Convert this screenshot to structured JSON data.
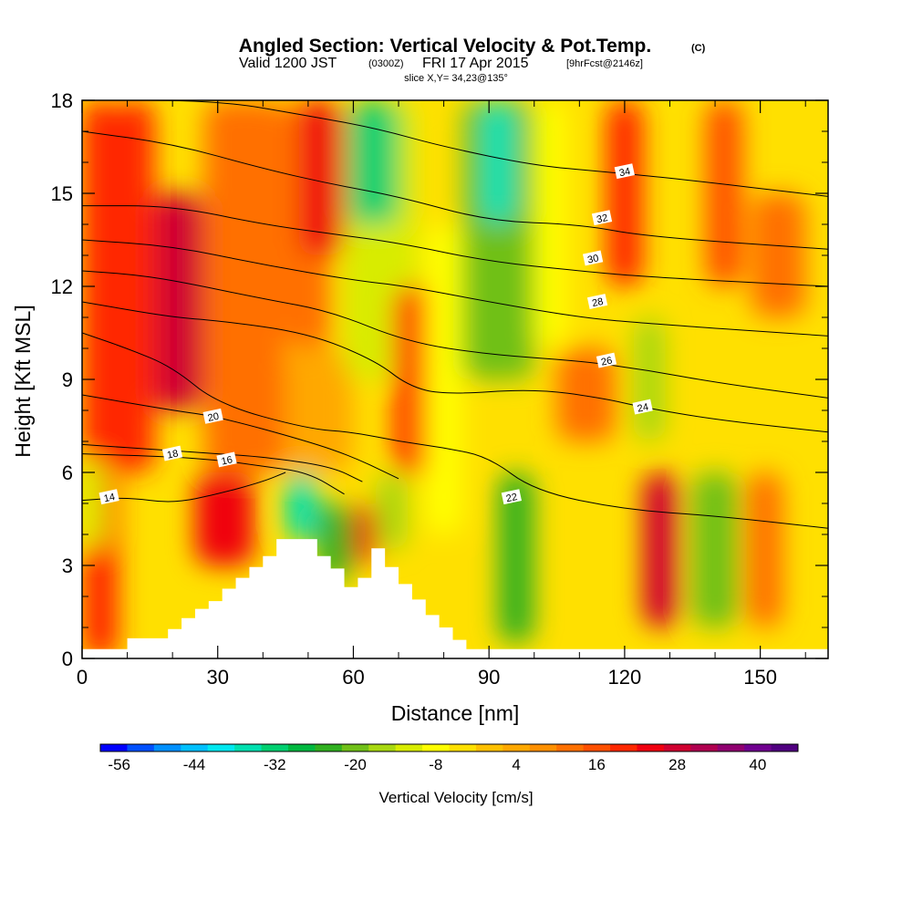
{
  "chart_data": {
    "type": "heatmap",
    "title": "Angled Section: Vertical Velocity & Pot.Temp.",
    "title_mark": "(C)",
    "subtitle": {
      "valid": "Valid 1200 JST",
      "utc": "(0300Z)",
      "date": "FRI 17 Apr 2015",
      "fcst": "[9hrFcst@2146z]"
    },
    "slice": "slice X,Y= 34,23@135°",
    "xlabel": "Distance [nm]",
    "ylabel": "Height [Kft MSL]",
    "xlim": [
      0,
      165
    ],
    "ylim": [
      0,
      18
    ],
    "x_ticks": [
      "0",
      "30",
      "60",
      "90",
      "120",
      "150"
    ],
    "x_tick_values": [
      0,
      30,
      60,
      90,
      120,
      150
    ],
    "y_ticks": [
      "0",
      "3",
      "6",
      "9",
      "12",
      "15",
      "18"
    ],
    "y_tick_values": [
      0,
      3,
      6,
      9,
      12,
      15,
      18
    ],
    "colorbar": {
      "title": "Vertical Velocity [cm/s]",
      "min": -56,
      "max": 52,
      "step": 4,
      "tick_labels": [
        "-56",
        "-44",
        "-32",
        "-20",
        "-8",
        "4",
        "16",
        "28",
        "40"
      ],
      "tick_values": [
        -56,
        -44,
        -32,
        -20,
        -8,
        4,
        16,
        28,
        40
      ],
      "colors": [
        "#0000ff",
        "#0050ff",
        "#0090ff",
        "#00c0ff",
        "#00e8f0",
        "#00e0b0",
        "#00d070",
        "#00b840",
        "#30b020",
        "#70c018",
        "#a8d810",
        "#d8ec00",
        "#ffff00",
        "#ffe000",
        "#ffc000",
        "#ffa800",
        "#ff9000",
        "#ff7000",
        "#ff5000",
        "#ff2800",
        "#f00010",
        "#d00030",
        "#b00050",
        "#900070",
        "#700090",
        "#500080"
      ]
    },
    "terrain": {
      "x": [
        0,
        10,
        10,
        19,
        19,
        22,
        22,
        25,
        25,
        28,
        28,
        31,
        31,
        34,
        34,
        37,
        37,
        40,
        40,
        43,
        43,
        52,
        52,
        55,
        55,
        58,
        58,
        61,
        61,
        64,
        64,
        67,
        67,
        70,
        70,
        73,
        73,
        76,
        76,
        79,
        79,
        82,
        82,
        85,
        85,
        88,
        88,
        165
      ],
      "y": [
        0.3,
        0.3,
        0.65,
        0.65,
        0.95,
        0.95,
        1.3,
        1.3,
        1.6,
        1.6,
        1.85,
        1.85,
        2.25,
        2.25,
        2.6,
        2.6,
        2.95,
        2.95,
        3.3,
        3.3,
        3.85,
        3.85,
        3.3,
        3.3,
        2.9,
        2.9,
        2.3,
        2.3,
        2.6,
        2.6,
        3.55,
        3.55,
        2.95,
        2.95,
        2.4,
        2.4,
        1.9,
        1.9,
        1.4,
        1.4,
        1.0,
        1.0,
        0.6,
        0.6,
        0.3,
        0.3,
        0.3,
        0.3
      ]
    },
    "velocity_cells": [
      {
        "x": [
          0,
          8
        ],
        "y": [
          0,
          18
        ],
        "v": 20
      },
      {
        "x": [
          8,
          16
        ],
        "y": [
          6,
          18
        ],
        "v": 22
      },
      {
        "x": [
          16,
          27
        ],
        "y": [
          8,
          15
        ],
        "v": 30
      },
      {
        "x": [
          27,
          45
        ],
        "y": [
          6,
          18
        ],
        "v": 14
      },
      {
        "x": [
          45,
          55
        ],
        "y": [
          10,
          18
        ],
        "v": 14
      },
      {
        "x": [
          45,
          60
        ],
        "y": [
          6,
          10
        ],
        "v": 6
      },
      {
        "x": [
          48,
          58
        ],
        "y": [
          13,
          18
        ],
        "v": 24
      },
      {
        "x": [
          58,
          74
        ],
        "y": [
          9,
          18
        ],
        "v": -10
      },
      {
        "x": [
          59,
          70
        ],
        "y": [
          14,
          18
        ],
        "v": -32
      },
      {
        "x": [
          69,
          78
        ],
        "y": [
          6,
          12
        ],
        "v": 20
      },
      {
        "x": [
          76,
          84
        ],
        "y": [
          4,
          14
        ],
        "v": -6
      },
      {
        "x": [
          84,
          100
        ],
        "y": [
          9,
          18
        ],
        "v": -18
      },
      {
        "x": [
          88,
          96
        ],
        "y": [
          14,
          18
        ],
        "v": -34
      },
      {
        "x": [
          92,
          100
        ],
        "y": [
          0.5,
          6
        ],
        "v": -22
      },
      {
        "x": [
          100,
          107
        ],
        "y": [
          10,
          18
        ],
        "v": -8
      },
      {
        "x": [
          105,
          118
        ],
        "y": [
          7,
          10
        ],
        "v": 14
      },
      {
        "x": [
          116,
          124
        ],
        "y": [
          12,
          18
        ],
        "v": 20
      },
      {
        "x": [
          122,
          129
        ],
        "y": [
          7,
          11
        ],
        "v": -16
      },
      {
        "x": [
          124,
          132
        ],
        "y": [
          1,
          6
        ],
        "v": 30
      },
      {
        "x": [
          135,
          145
        ],
        "y": [
          1,
          6
        ],
        "v": -18
      },
      {
        "x": [
          138,
          146
        ],
        "y": [
          12,
          18
        ],
        "v": 18
      },
      {
        "x": [
          147,
          155
        ],
        "y": [
          1,
          6
        ],
        "v": 14
      },
      {
        "x": [
          148,
          160
        ],
        "y": [
          11,
          15
        ],
        "v": 14
      },
      {
        "x": [
          0,
          5
        ],
        "y": [
          3.5,
          6.5
        ],
        "v": -10
      },
      {
        "x": [
          25,
          38
        ],
        "y": [
          3,
          6
        ],
        "v": 26
      },
      {
        "x": [
          45,
          52
        ],
        "y": [
          3.8,
          6
        ],
        "v": -36
      },
      {
        "x": [
          52,
          60
        ],
        "y": [
          2.5,
          5
        ],
        "v": -22
      },
      {
        "x": [
          60,
          65
        ],
        "y": [
          3,
          5
        ],
        "v": 26
      },
      {
        "x": [
          65,
          72
        ],
        "y": [
          3.5,
          6
        ],
        "v": -16
      }
    ],
    "contours": [
      {
        "label": "14",
        "x": [
          0,
          10,
          20,
          30,
          40,
          45
        ],
        "y": [
          5.1,
          5.2,
          5.0,
          5.3,
          5.7,
          6.0
        ],
        "label_x": 6,
        "label_y": 5.2
      },
      {
        "label": "16",
        "x": [
          0,
          20,
          30,
          40,
          50,
          58
        ],
        "y": [
          6.6,
          6.5,
          6.4,
          6.2,
          6.0,
          5.3
        ],
        "label_x": 32,
        "label_y": 6.4
      },
      {
        "label": "18",
        "x": [
          0,
          20,
          30,
          40,
          55,
          62
        ],
        "y": [
          6.9,
          6.7,
          6.6,
          6.5,
          6.2,
          5.7
        ],
        "label_x": 20,
        "label_y": 6.6
      },
      {
        "label": "20",
        "x": [
          0,
          20,
          30,
          50,
          60,
          70
        ],
        "y": [
          8.5,
          8.0,
          7.8,
          7.0,
          6.5,
          5.8
        ],
        "label_x": 29,
        "label_y": 7.8
      },
      {
        "label": "22",
        "x": [
          0,
          10,
          20,
          30,
          50,
          60,
          70,
          80,
          90,
          100,
          120,
          140,
          165
        ],
        "y": [
          10.5,
          10.0,
          9.4,
          8.2,
          7.4,
          7.3,
          7.0,
          6.8,
          6.5,
          5.4,
          4.8,
          4.6,
          4.2
        ],
        "label_x": 95,
        "label_y": 5.2
      },
      {
        "label": "24",
        "x": [
          0,
          20,
          30,
          50,
          65,
          72,
          80,
          100,
          115,
          124,
          140,
          165
        ],
        "y": [
          11.5,
          11.0,
          10.9,
          10.5,
          9.6,
          8.8,
          8.5,
          8.7,
          8.4,
          8.1,
          7.7,
          7.3
        ],
        "label_x": 124,
        "label_y": 8.1
      },
      {
        "label": "26",
        "x": [
          0,
          10,
          20,
          40,
          55,
          72,
          90,
          110,
          125,
          140,
          165
        ],
        "y": [
          12.5,
          12.4,
          12.2,
          11.6,
          11.2,
          10.2,
          9.8,
          9.6,
          9.3,
          8.9,
          8.4
        ],
        "label_x": 116,
        "label_y": 9.6
      },
      {
        "label": "28",
        "x": [
          0,
          20,
          40,
          60,
          72,
          90,
          110,
          125,
          165
        ],
        "y": [
          13.5,
          13.3,
          12.7,
          12.2,
          12.0,
          11.5,
          11.0,
          10.8,
          10.4
        ],
        "label_x": 114,
        "label_y": 11.5
      },
      {
        "label": "30",
        "x": [
          0,
          20,
          40,
          55,
          70,
          90,
          110,
          125,
          165
        ],
        "y": [
          14.6,
          14.6,
          14.0,
          13.7,
          13.4,
          12.8,
          12.5,
          12.3,
          12.0
        ],
        "label_x": 113,
        "label_y": 12.9
      },
      {
        "label": "32",
        "x": [
          0,
          20,
          40,
          55,
          70,
          90,
          110,
          125,
          165
        ],
        "y": [
          17.0,
          16.6,
          15.8,
          15.3,
          14.9,
          14.1,
          14.0,
          13.6,
          13.2
        ],
        "label_x": 115,
        "label_y": 14.2
      },
      {
        "label": "34",
        "x": [
          0,
          30,
          50,
          65,
          80,
          100,
          115,
          130,
          165
        ],
        "y": [
          18.0,
          18.0,
          17.5,
          17.1,
          16.5,
          15.9,
          15.7,
          15.5,
          14.9
        ],
        "label_x": 120,
        "label_y": 15.7
      }
    ]
  }
}
